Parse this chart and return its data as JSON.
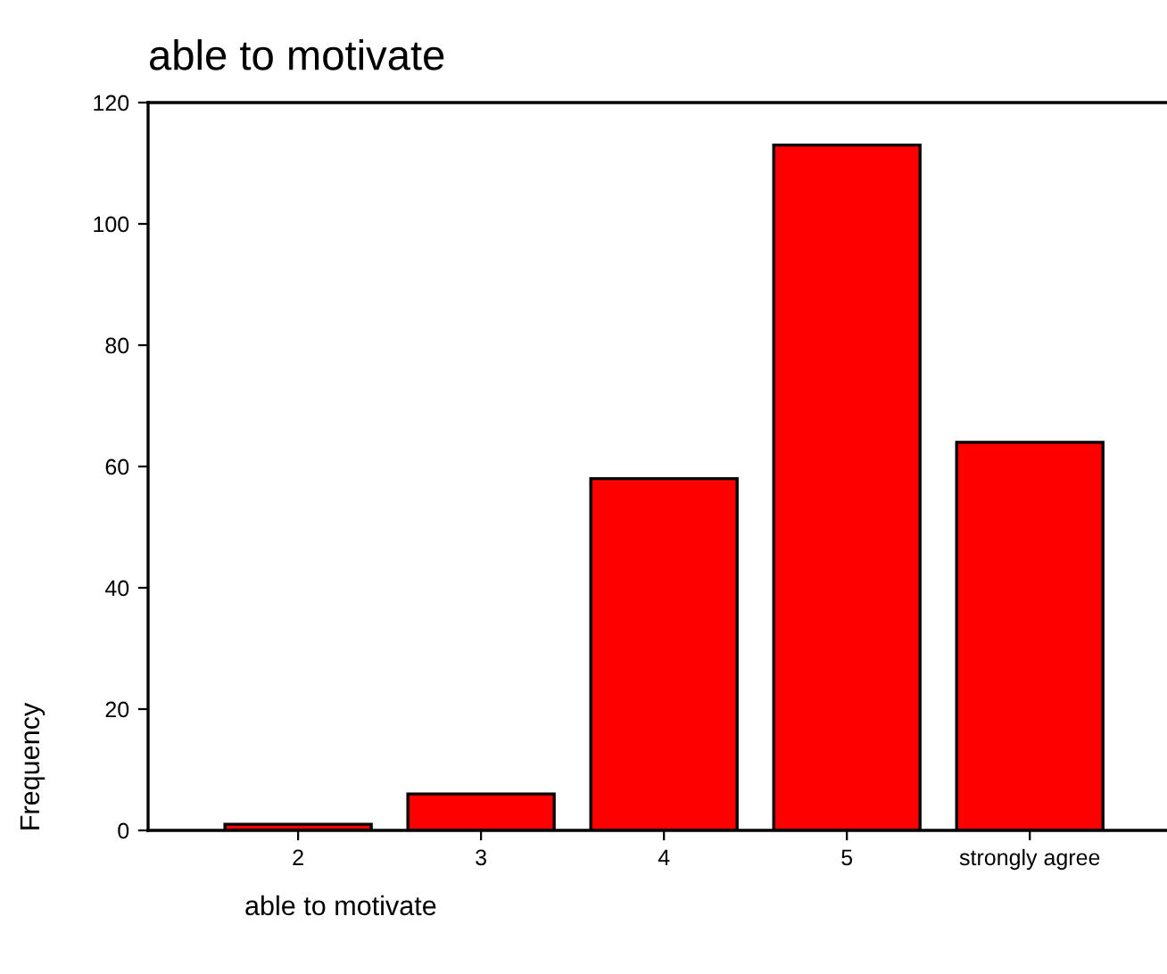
{
  "chart_data": {
    "type": "bar",
    "title": "able to motivate",
    "xlabel": "able to motivate",
    "ylabel": "Frequency",
    "categories": [
      "2",
      "3",
      "4",
      "5",
      "strongly agree"
    ],
    "values": [
      1,
      6,
      58,
      113,
      64
    ],
    "color": "#ff0000",
    "ylim": [
      0,
      120
    ],
    "yticks": [
      0,
      20,
      40,
      60,
      80,
      100,
      120
    ],
    "grid": false,
    "legend": false
  }
}
